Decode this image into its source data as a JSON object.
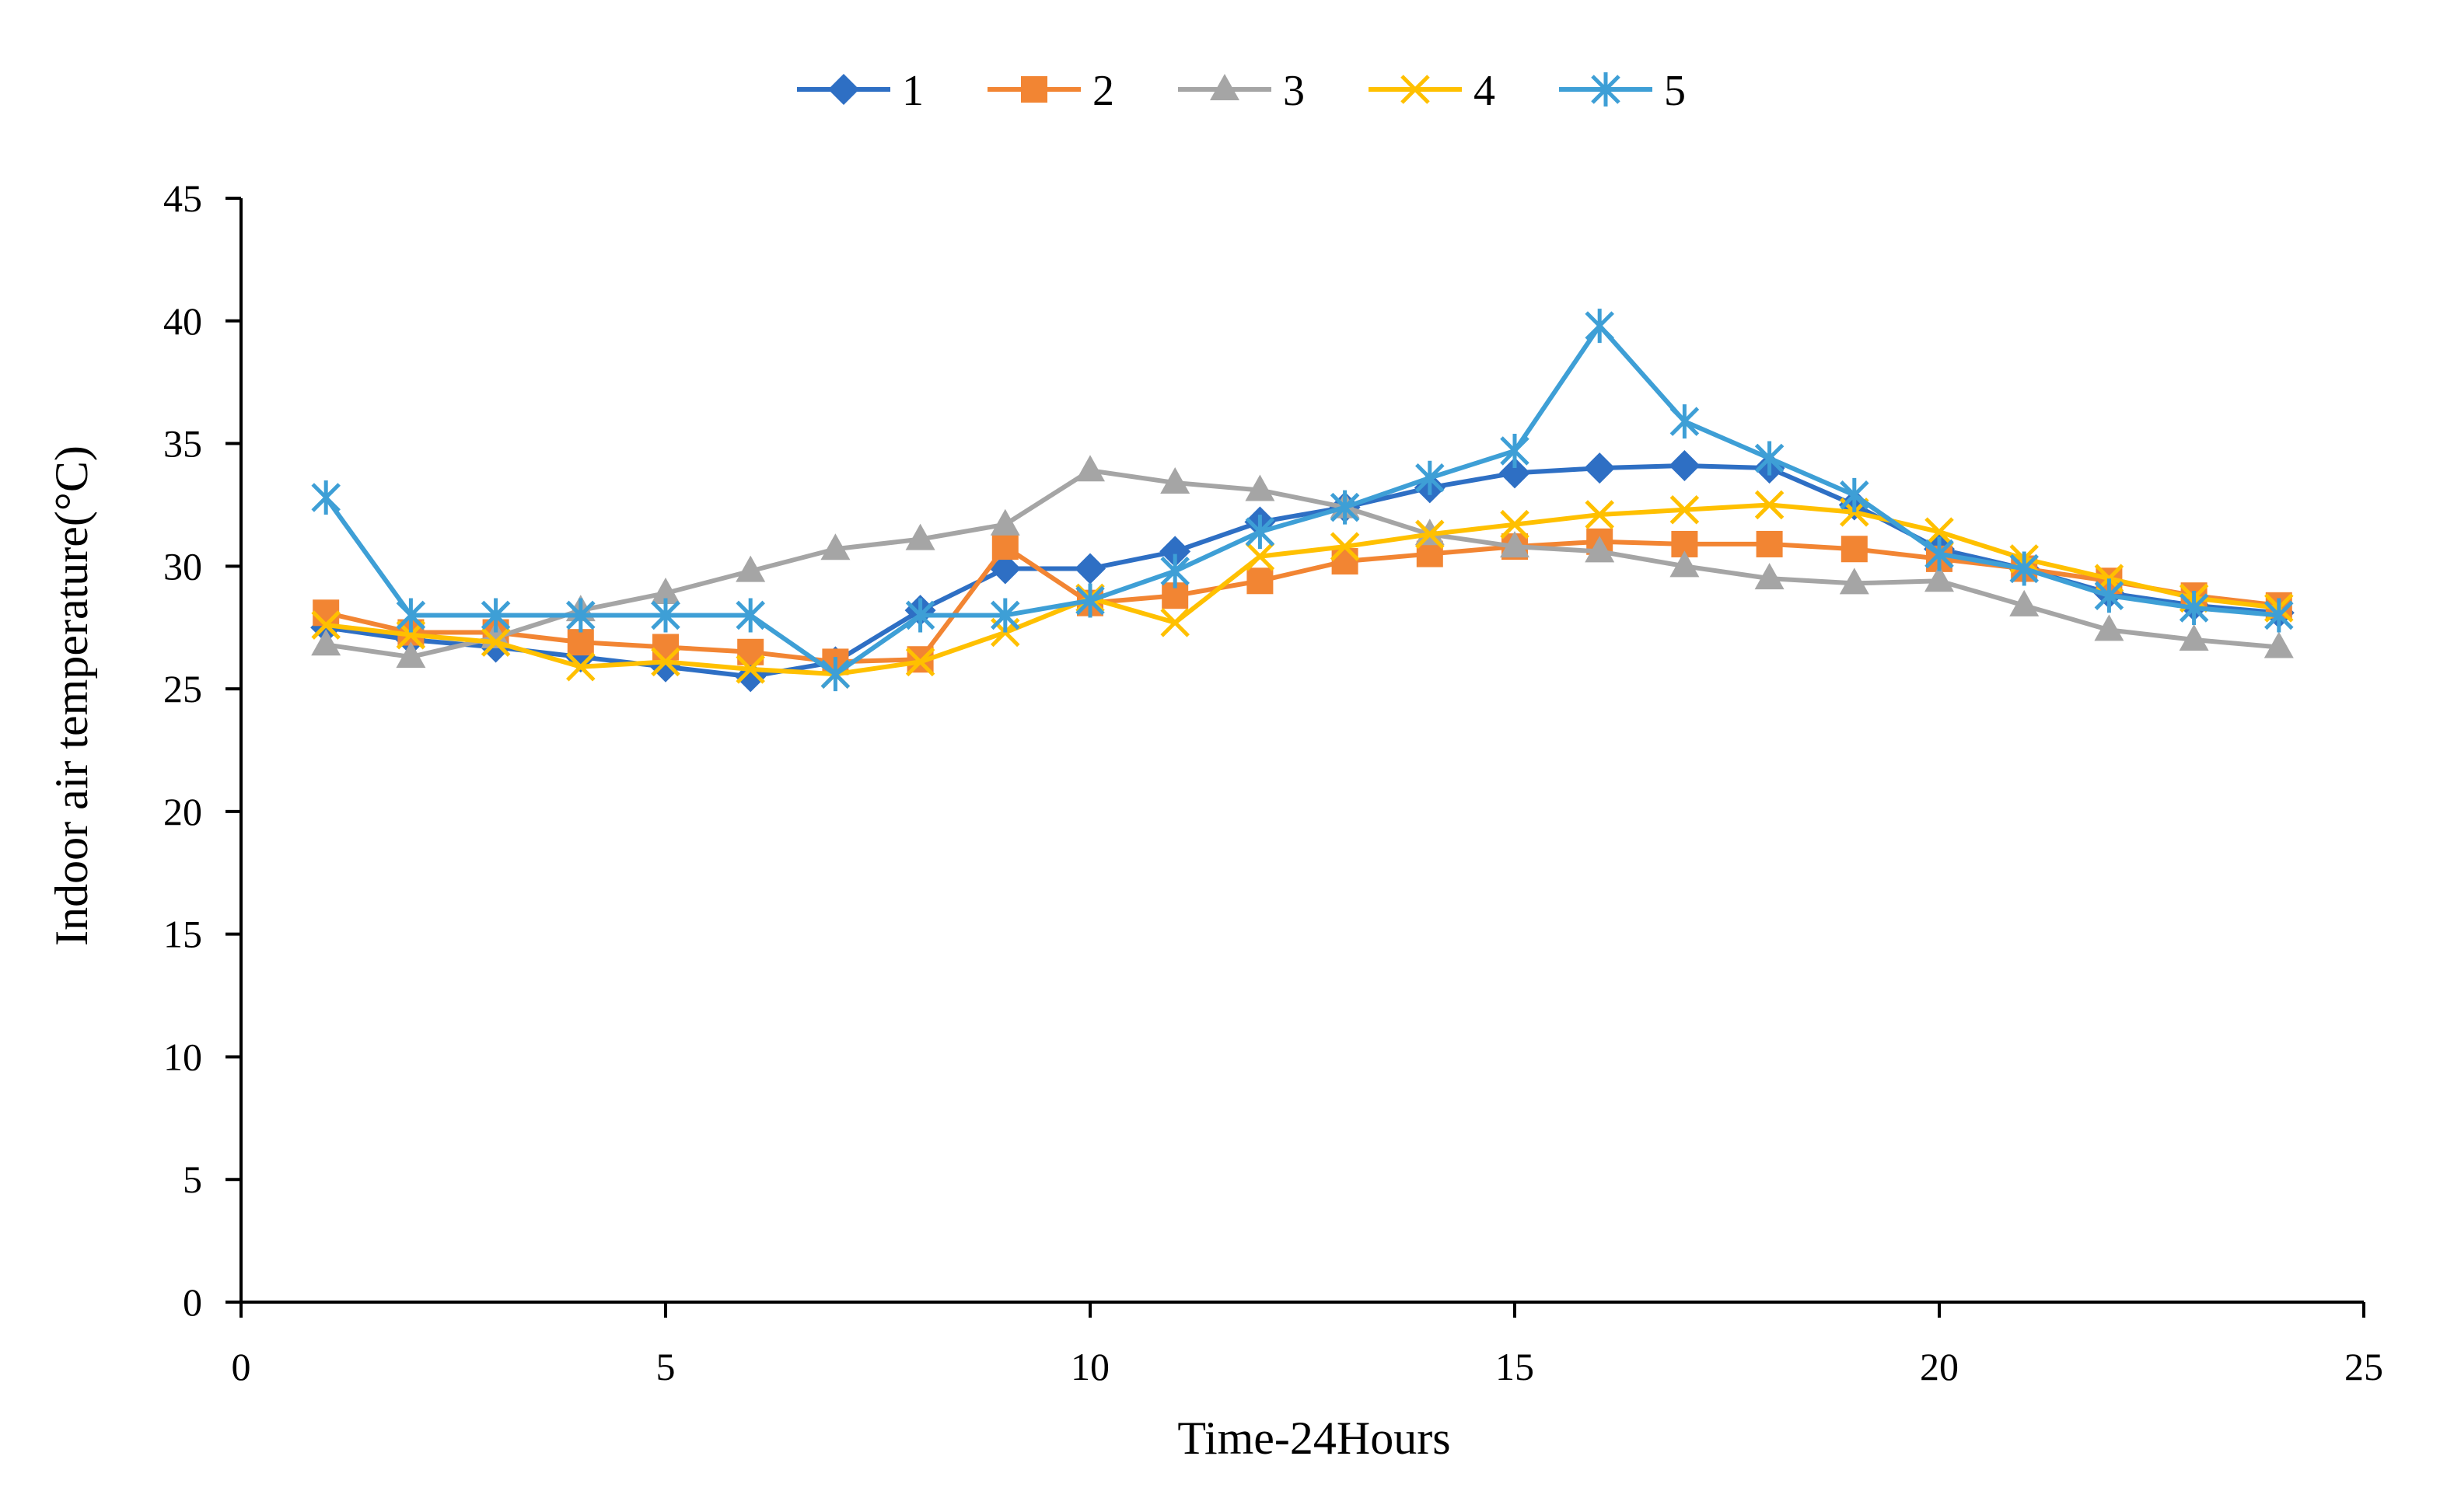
{
  "chart_data": {
    "type": "line",
    "title": "",
    "xlabel": "Time-24Hours",
    "ylabel": "Indoor air temperature(°C)",
    "xlim": [
      0,
      25
    ],
    "ylim": [
      0,
      45
    ],
    "xticks": [
      0,
      5,
      10,
      15,
      20,
      25
    ],
    "yticks": [
      0,
      5,
      10,
      15,
      20,
      25,
      30,
      35,
      40,
      45
    ],
    "grid": false,
    "legend_position": "top-center",
    "x": [
      1,
      2,
      3,
      4,
      5,
      6,
      7,
      8,
      9,
      10,
      11,
      12,
      13,
      14,
      15,
      16,
      17,
      18,
      19,
      20,
      21,
      22,
      23,
      24
    ],
    "series": [
      {
        "name": "1",
        "color": "#2E6FC4",
        "marker": "diamond",
        "values": [
          27.5,
          27.0,
          26.7,
          26.3,
          25.9,
          25.5,
          26.1,
          28.2,
          29.9,
          29.9,
          30.6,
          31.8,
          32.4,
          33.2,
          33.8,
          34.0,
          34.1,
          34.0,
          32.5,
          30.7,
          29.9,
          28.9,
          28.4,
          28.1
        ]
      },
      {
        "name": "2",
        "color": "#F28533",
        "marker": "square",
        "values": [
          28.1,
          27.3,
          27.3,
          26.9,
          26.7,
          26.5,
          26.1,
          26.2,
          30.8,
          28.5,
          28.8,
          29.4,
          30.2,
          30.5,
          30.8,
          31.0,
          30.9,
          30.9,
          30.7,
          30.3,
          29.9,
          29.4,
          28.8,
          28.4
        ]
      },
      {
        "name": "3",
        "color": "#A5A5A5",
        "marker": "triangle",
        "values": [
          26.8,
          26.3,
          27.1,
          28.2,
          28.9,
          29.8,
          30.7,
          31.1,
          31.7,
          33.9,
          33.4,
          33.1,
          32.4,
          31.3,
          30.8,
          30.6,
          30.0,
          29.5,
          29.3,
          29.4,
          28.4,
          27.4,
          27.0,
          26.7
        ]
      },
      {
        "name": "4",
        "color": "#FFC000",
        "marker": "x",
        "values": [
          27.6,
          27.2,
          26.9,
          25.9,
          26.1,
          25.8,
          25.6,
          26.1,
          27.3,
          28.7,
          27.7,
          30.4,
          30.8,
          31.3,
          31.7,
          32.1,
          32.3,
          32.5,
          32.2,
          31.4,
          30.3,
          29.5,
          28.7,
          28.3
        ]
      },
      {
        "name": "5",
        "color": "#3E9FD6",
        "marker": "asterisk",
        "values": [
          32.8,
          28.0,
          28.0,
          28.0,
          28.0,
          28.0,
          25.6,
          28.0,
          28.0,
          28.6,
          29.8,
          31.4,
          32.4,
          33.6,
          34.7,
          39.8,
          35.9,
          34.4,
          32.9,
          30.5,
          29.9,
          28.8,
          28.3,
          28.0
        ]
      }
    ]
  }
}
